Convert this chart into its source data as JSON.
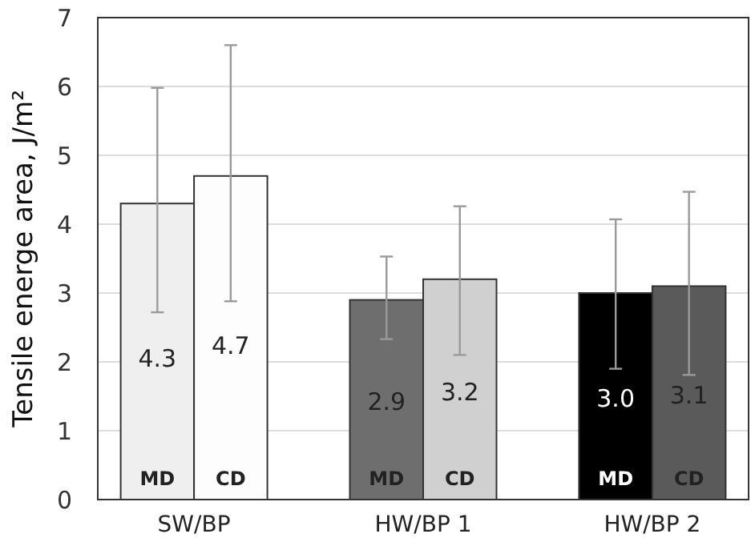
{
  "chart_data": {
    "type": "bar",
    "ylabel": "Tensile energe area, J/m²",
    "categories": [
      "SW/BP",
      "HW/BP 1",
      "HW/BP 2"
    ],
    "series": [
      {
        "name": "MD",
        "colors": [
          "#efefef",
          "#6e6e6e",
          "#000000"
        ],
        "values": [
          4.3,
          2.9,
          3.0
        ],
        "value_labels": [
          "4.3",
          "2.9",
          "3.0"
        ],
        "errors": [
          [
            2.72,
            5.98
          ],
          [
            2.33,
            3.53
          ],
          [
            1.9,
            4.07
          ]
        ]
      },
      {
        "name": "CD",
        "colors": [
          "#fdfdfd",
          "#d0d0d0",
          "#5a5a5a"
        ],
        "values": [
          4.7,
          3.2,
          3.1
        ],
        "value_labels": [
          "4.7",
          "3.2",
          "3.1"
        ],
        "errors": [
          [
            2.88,
            6.6
          ],
          [
            2.1,
            4.26
          ],
          [
            1.81,
            4.47
          ]
        ]
      }
    ],
    "ylim": [
      0,
      7
    ],
    "yticks": [
      0,
      1,
      2,
      3,
      4,
      5,
      6,
      7
    ],
    "grid": "y"
  }
}
